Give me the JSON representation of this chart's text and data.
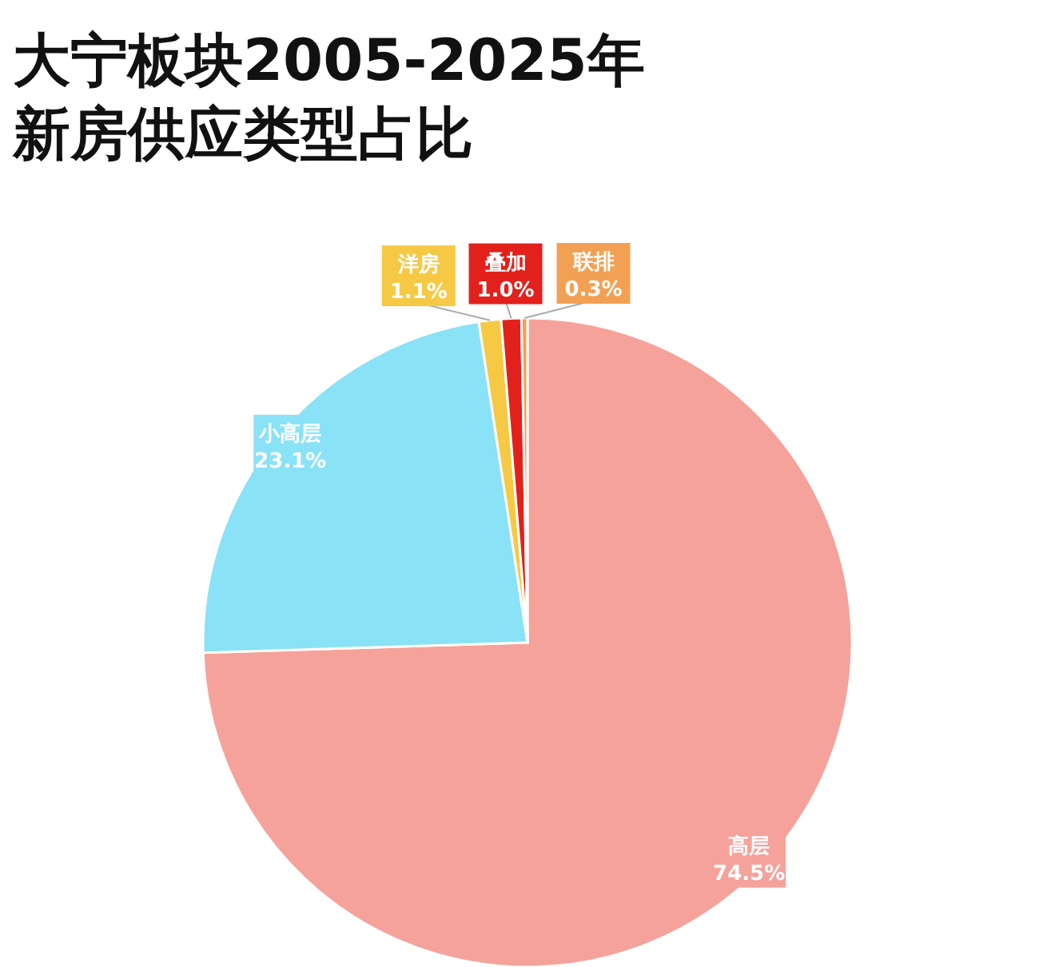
{
  "chart_data": {
    "type": "pie",
    "title": "大宁板块2005-2025年",
    "subtitle": "新房供应类型占比",
    "categories": [
      "高层",
      "小高层",
      "洋房",
      "叠加",
      "联排"
    ],
    "values": [
      74.5,
      23.1,
      1.1,
      1.0,
      0.3
    ],
    "colors": [
      "#f5a29b",
      "#8ae2f6",
      "#f6c945",
      "#e2211c",
      "#f2a154"
    ],
    "value_labels": [
      "74.5%",
      "23.1%",
      "1.1%",
      "1.0%",
      "0.3%"
    ]
  }
}
